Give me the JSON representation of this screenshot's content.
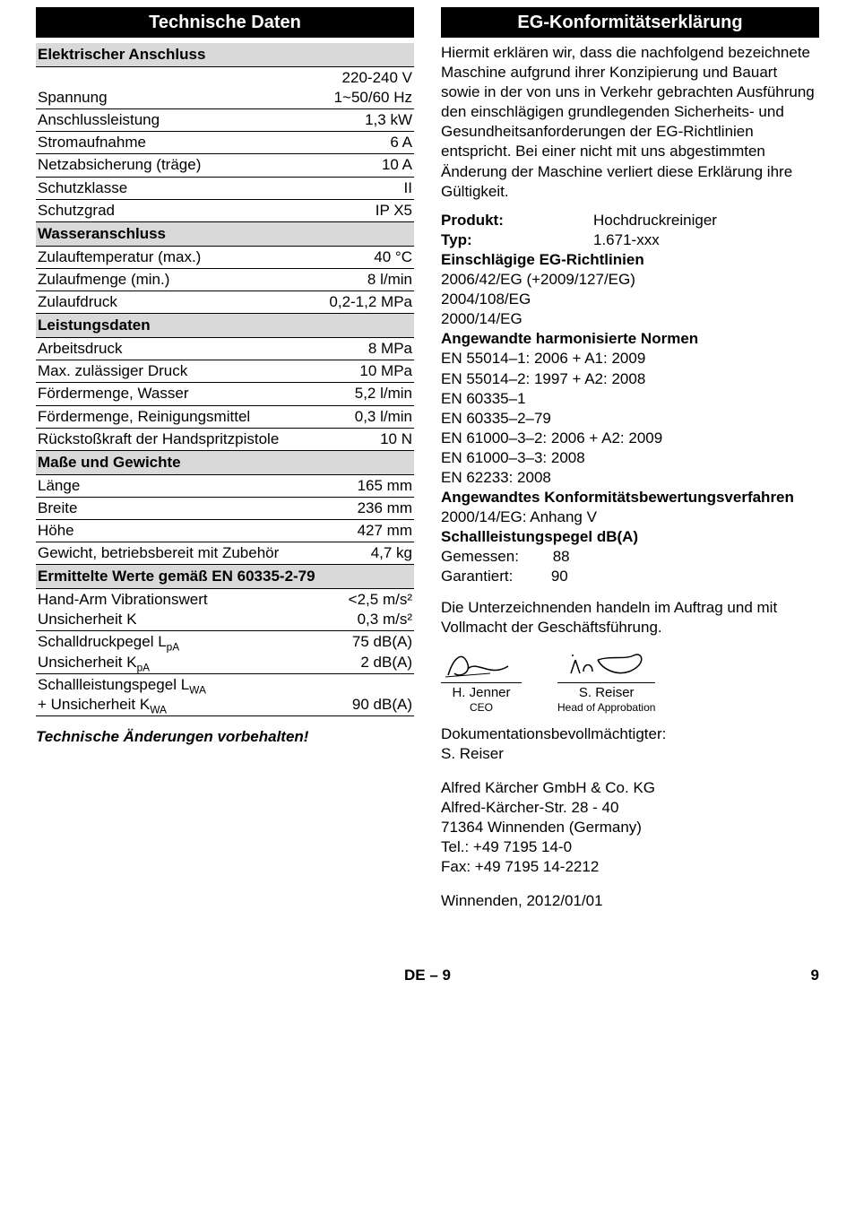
{
  "left": {
    "header": "Technische Daten",
    "sections": [
      {
        "type": "section",
        "label": "Elektrischer Anschluss"
      },
      {
        "type": "row",
        "label": "Spannung",
        "value": "220-240 V\n1~50/60 Hz"
      },
      {
        "type": "row",
        "label": "Anschlussleistung",
        "value": "1,3 kW"
      },
      {
        "type": "row",
        "label": "Stromaufnahme",
        "value": "6 A"
      },
      {
        "type": "row",
        "label": "Netzabsicherung (träge)",
        "value": "10 A"
      },
      {
        "type": "row",
        "label": "Schutzklasse",
        "value": "II"
      },
      {
        "type": "row",
        "label": "Schutzgrad",
        "value": "IP X5"
      },
      {
        "type": "section",
        "label": "Wasseranschluss"
      },
      {
        "type": "row",
        "label": "Zulauftemperatur (max.)",
        "value": "40 °C"
      },
      {
        "type": "row",
        "label": "Zulaufmenge (min.)",
        "value": "8 l/min"
      },
      {
        "type": "row",
        "label": "Zulaufdruck",
        "value": "0,2-1,2 MPa"
      },
      {
        "type": "section",
        "label": "Leistungsdaten"
      },
      {
        "type": "row",
        "label": "Arbeitsdruck",
        "value": "8 MPa"
      },
      {
        "type": "row",
        "label": "Max. zulässiger Druck",
        "value": "10 MPa"
      },
      {
        "type": "row",
        "label": "Fördermenge, Wasser",
        "value": "5,2 l/min"
      },
      {
        "type": "row",
        "label": "Fördermenge, Reinigungsmittel",
        "value": "0,3 l/min"
      },
      {
        "type": "row",
        "label": "Rückstoßkraft der Handspritzpistole",
        "value": "10 N"
      },
      {
        "type": "section",
        "label": "Maße und Gewichte"
      },
      {
        "type": "row",
        "label": "Länge",
        "value": "165 mm"
      },
      {
        "type": "row",
        "label": "Breite",
        "value": "236 mm"
      },
      {
        "type": "row",
        "label": "Höhe",
        "value": "427 mm"
      },
      {
        "type": "row",
        "label": "Gewicht, betriebsbereit mit Zubehör",
        "value": "4,7 kg"
      },
      {
        "type": "section",
        "label": "Ermittelte Werte gemäß EN 60335-2-79"
      },
      {
        "type": "row",
        "label": "Hand-Arm Vibrationswert\nUnsicherheit K",
        "value": "<2,5 m/s²\n0,3 m/s²"
      },
      {
        "type": "row",
        "label": "Schalldruckpegel L<sub>pA</sub>\nUnsicherheit K<sub>pA</sub>",
        "value": "75 dB(A)\n2 dB(A)"
      },
      {
        "type": "row",
        "label": "Schallleistungspegel L<sub>WA</sub>\n+ Unsicherheit K<sub>WA</sub>",
        "value": "90 dB(A)"
      }
    ],
    "footnote": "Technische Änderungen vorbehalten!"
  },
  "right": {
    "header": "EG-Konformitätserklärung",
    "intro": "Hiermit erklären wir, dass die nachfolgend bezeichnete Maschine aufgrund ihrer Konzipierung und Bauart sowie in der von uns in Verkehr gebrachten Ausführung den einschlägigen grundlegenden Sicherheits- und Gesundheitsanforderungen der EG-Richtlinien entspricht. Bei einer nicht mit uns abgestimmten Änderung der Maschine verliert diese Erklärung ihre Gültigkeit.",
    "kv": [
      {
        "k": "Produkt:",
        "v": "Hochdruckreiniger"
      },
      {
        "k": "Typ:",
        "v": "1.671-xxx"
      }
    ],
    "blocks": [
      {
        "title": "Einschlägige EG-Richtlinien",
        "lines": [
          "2006/42/EG (+2009/127/EG)",
          "2004/108/EG",
          "2000/14/EG"
        ]
      },
      {
        "title": "Angewandte harmonisierte Normen",
        "lines": [
          "EN 55014–1: 2006 + A1: 2009",
          "EN 55014–2: 1997 + A2: 2008",
          "EN 60335–1",
          "EN 60335–2–79",
          "EN 61000–3–2: 2006 + A2: 2009",
          "EN 61000–3–3: 2008",
          "EN 62233: 2008"
        ]
      },
      {
        "title": "Angewandtes Konformitätsbewertungsverfahren",
        "lines": [
          "2000/14/EG: Anhang V"
        ]
      },
      {
        "title": "Schallleistungspegel dB(A)",
        "lines": [
          "Gemessen:        88",
          "Garantiert:         90"
        ]
      }
    ],
    "after_blocks": "Die Unterzeichnenden handeln im Auftrag und mit Vollmacht der Geschäftsführung.",
    "signatures": [
      {
        "name": "H. Jenner",
        "title": "CEO"
      },
      {
        "name": "S. Reiser",
        "title": "Head of Approbation"
      }
    ],
    "doc_auth_label": "Dokumentationsbevollmächtigter:",
    "doc_auth_name": "S. Reiser",
    "address": [
      "Alfred Kärcher GmbH & Co. KG",
      "Alfred-Kärcher-Str. 28 - 40",
      "71364 Winnenden (Germany)",
      "Tel.: +49 7195 14-0",
      "Fax: +49 7195 14-2212"
    ],
    "date": "Winnenden, 2012/01/01"
  },
  "footer": {
    "center": "DE – 9",
    "page": "9"
  }
}
